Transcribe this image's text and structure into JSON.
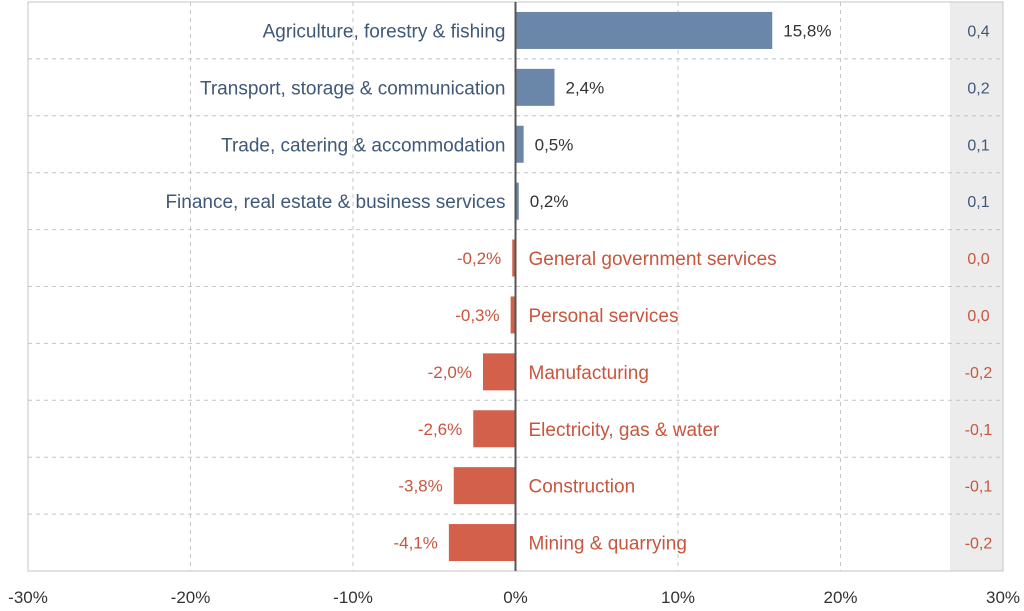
{
  "chart_data": {
    "type": "bar",
    "orientation": "horizontal",
    "categories": [
      "Agriculture, forestry & fishing",
      "Transport, storage & communication",
      "Trade, catering & accommodation",
      "Finance, real estate & business services",
      "General government services",
      "Personal services",
      "Manufacturing",
      "Electricity, gas & water",
      "Construction",
      "Mining & quarrying"
    ],
    "values": [
      15.8,
      2.4,
      0.5,
      0.2,
      -0.2,
      -0.3,
      -2.0,
      -2.6,
      -3.8,
      -4.1
    ],
    "value_labels": [
      "15,8%",
      "2,4%",
      "0,5%",
      "0,2%",
      "-0,2%",
      "-0,3%",
      "-2,0%",
      "-2,6%",
      "-3,8%",
      "-4,1%"
    ],
    "side_values": [
      0.4,
      0.2,
      0.1,
      0.1,
      0.0,
      0.0,
      -0.2,
      -0.1,
      -0.1,
      -0.2
    ],
    "side_labels": [
      "0,4",
      "0,2",
      "0,1",
      "0,1",
      "0,0",
      "0,0",
      "-0,2",
      "-0,1",
      "-0,1",
      "-0,2"
    ],
    "x_ticks": [
      -30,
      -20,
      -10,
      0,
      10,
      20,
      30
    ],
    "x_tick_labels": [
      "-30%",
      "-20%",
      "-10%",
      "0%",
      "10%",
      "20%",
      "30%"
    ],
    "xlim": [
      -30,
      30
    ],
    "grid": true,
    "title": "",
    "xlabel": "",
    "ylabel": "",
    "colors": {
      "positive": "#6a86a8",
      "negative": "#d2604a",
      "positive_text": "#3f5878",
      "negative_text": "#c8553d",
      "grid": "#c4c4c4",
      "side_panel": "#ececec",
      "axis": "#555555"
    }
  }
}
